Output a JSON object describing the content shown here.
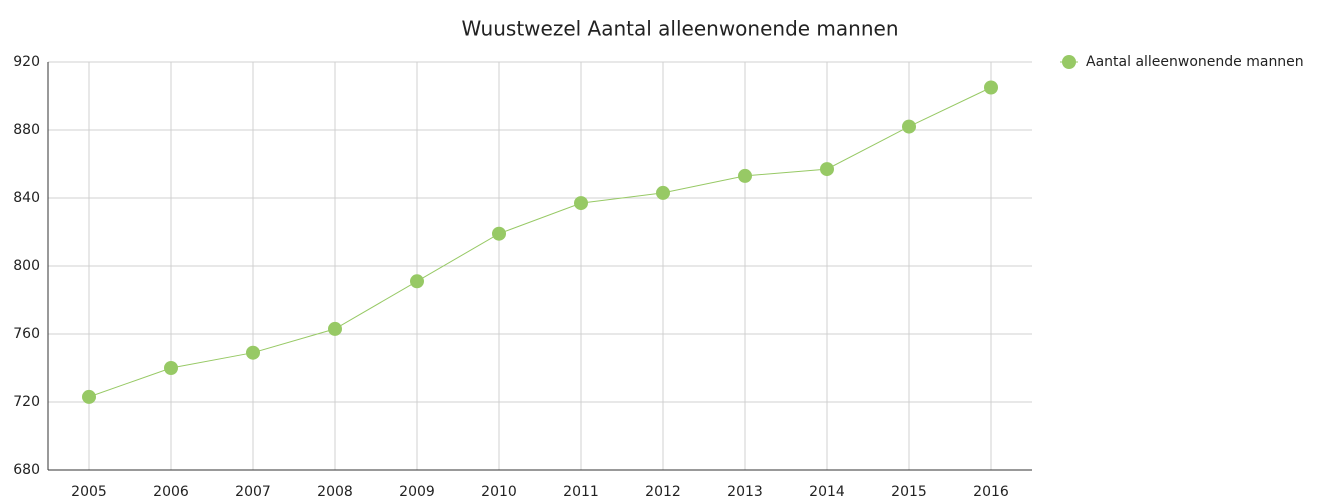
{
  "chart_data": {
    "type": "line",
    "title": "Wuustwezel  Aantal alleenwonende mannen",
    "categories": [
      "2005",
      "2006",
      "2007",
      "2008",
      "2009",
      "2010",
      "2011",
      "2012",
      "2013",
      "2014",
      "2015",
      "2016"
    ],
    "series": [
      {
        "name": "Aantal alleenwonende mannen",
        "color": "#97c965",
        "values": [
          723,
          740,
          749,
          763,
          791,
          819,
          837,
          843,
          853,
          857,
          882,
          905
        ]
      }
    ],
    "ylim": [
      680,
      920
    ],
    "yticks": [
      680,
      720,
      760,
      800,
      840,
      880,
      920
    ],
    "grid": true,
    "legend": "right"
  }
}
